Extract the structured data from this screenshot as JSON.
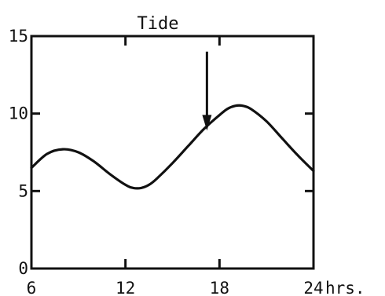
{
  "chart_data": {
    "type": "line",
    "title": "Tide",
    "x_unit": "hrs.",
    "xlim": [
      6,
      24
    ],
    "ylim": [
      0,
      15
    ],
    "x_ticks": [
      6,
      12,
      18,
      24
    ],
    "y_ticks": [
      0,
      5,
      10,
      15
    ],
    "grid": false,
    "series": [
      {
        "x": [
          6,
          7,
          8,
          9,
          10,
          11,
          12,
          12.5,
          13,
          13.5,
          14,
          15,
          16,
          17,
          18,
          18.5,
          19,
          19.5,
          20,
          21,
          22,
          23,
          24
        ],
        "y": [
          6.5,
          7.4,
          7.7,
          7.5,
          6.9,
          6.1,
          5.4,
          5.2,
          5.2,
          5.4,
          5.8,
          6.8,
          7.9,
          9.0,
          9.9,
          10.3,
          10.5,
          10.5,
          10.3,
          9.5,
          8.4,
          7.3,
          6.3
        ]
      }
    ],
    "annotation": {
      "type": "arrow",
      "x": 17.2,
      "y_from": 14.0,
      "y_to": 8.9
    }
  }
}
